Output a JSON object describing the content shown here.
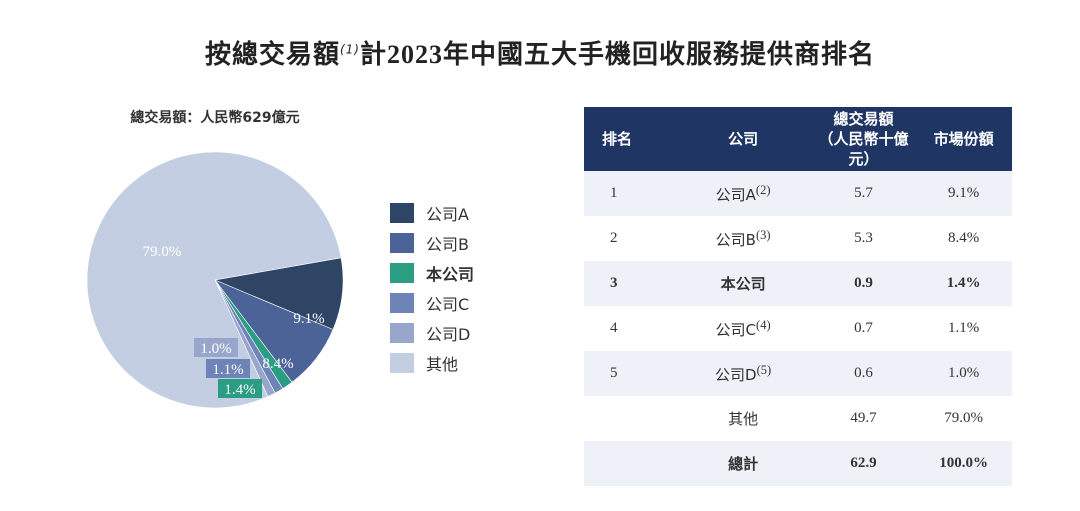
{
  "title": {
    "prefix": "按總交易額",
    "note": "(1)",
    "mid": "計",
    "year": "2023",
    "suffix": "年中國五大手機回收服務提供商排名"
  },
  "subtitle": "總交易額：人民幣629億元",
  "chart_data": {
    "type": "pie",
    "slices": [
      {
        "name": "公司A",
        "value": 9.1,
        "label": "9.1%",
        "color": "#2e4566"
      },
      {
        "name": "公司B",
        "value": 8.4,
        "label": "8.4%",
        "color": "#4c6397"
      },
      {
        "name": "本公司",
        "value": 1.4,
        "label": "1.4%",
        "color": "#2a9d82"
      },
      {
        "name": "公司C",
        "value": 1.1,
        "label": "1.1%",
        "color": "#6e84b8"
      },
      {
        "name": "公司D",
        "value": 1.0,
        "label": "1.0%",
        "color": "#98a6cc"
      },
      {
        "name": "其他",
        "value": 79.0,
        "label": "79.0%",
        "color": "#c4cee2"
      }
    ]
  },
  "legend": [
    {
      "label": "公司A",
      "color": "#2e4566",
      "bold": false
    },
    {
      "label": "公司B",
      "color": "#4c6397",
      "bold": false
    },
    {
      "label": "本公司",
      "color": "#2a9d82",
      "bold": true
    },
    {
      "label": "公司C",
      "color": "#6e84b8",
      "bold": false
    },
    {
      "label": "公司D",
      "color": "#98a6cc",
      "bold": false
    },
    {
      "label": "其他",
      "color": "#c4cee2",
      "bold": false
    }
  ],
  "table": {
    "headers": {
      "rank": "排名",
      "company": "公司",
      "amount_line1": "總交易額",
      "amount_line2": "（人民幣十億元）",
      "share": "市場份額"
    },
    "rows": [
      {
        "rank": "1",
        "company": "公司A",
        "note": "(2)",
        "amount": "5.7",
        "share": "9.1%"
      },
      {
        "rank": "2",
        "company": "公司B",
        "note": "(3)",
        "amount": "5.3",
        "share": "8.4%"
      },
      {
        "rank": "3",
        "company": "本公司",
        "note": "",
        "amount": "0.9",
        "share": "1.4%"
      },
      {
        "rank": "4",
        "company": "公司C",
        "note": "(4)",
        "amount": "0.7",
        "share": "1.1%"
      },
      {
        "rank": "5",
        "company": "公司D",
        "note": "(5)",
        "amount": "0.6",
        "share": "1.0%"
      },
      {
        "rank": "",
        "company": "其他",
        "note": "",
        "amount": "49.7",
        "share": "79.0%"
      },
      {
        "rank": "",
        "company": "總計",
        "note": "",
        "amount": "62.9",
        "share": "100.0%"
      }
    ]
  }
}
